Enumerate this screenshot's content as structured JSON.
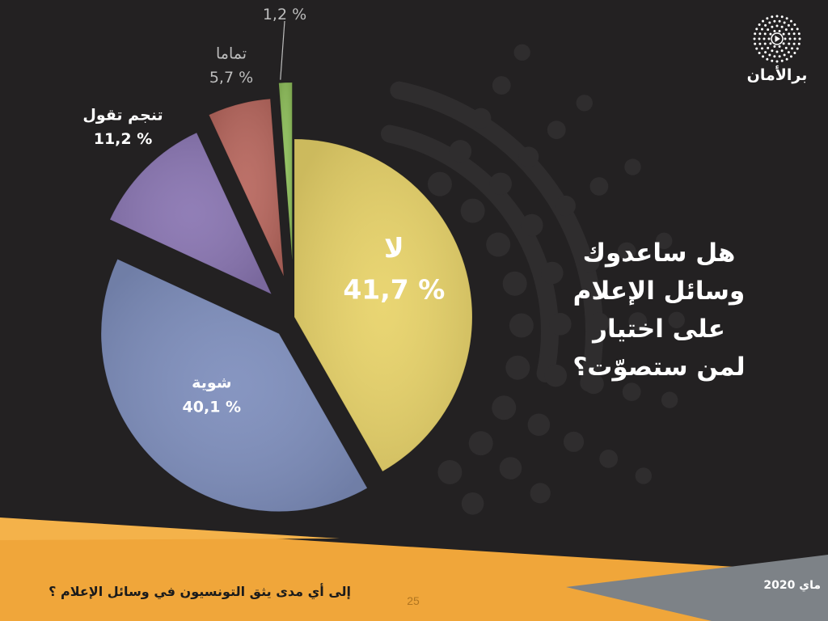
{
  "chart_data": {
    "type": "pie",
    "title": "",
    "slices": [
      {
        "name": "لا",
        "value": 41.7,
        "label": "41,7 %",
        "color": "#e8d36a"
      },
      {
        "name": "شوية",
        "value": 40.1,
        "label": "40,1 %",
        "color": "#7f8fbd"
      },
      {
        "name": "تنجم تقول",
        "value": 11.2,
        "label": "11,2 %",
        "color": "#8a76b2"
      },
      {
        "name": "تماما",
        "value": 5.7,
        "label": "5,7 %",
        "color": "#b8685f"
      },
      {
        "name": "",
        "value": 1.2,
        "label": "1,2 %",
        "color": "#8fbf5c"
      }
    ]
  },
  "question": {
    "lines": [
      "هل ساعدوك",
      "وسائل الإعلام",
      "على اختيار",
      "لمن ستصوّت؟"
    ]
  },
  "logo": {
    "text": "برالأمان",
    "icon": "play-dots-icon"
  },
  "footer": {
    "title": "إلى أي مدى يثق التونسيون في وسائل الإعلام ؟",
    "page_number": "25",
    "date": "ماي 2020"
  },
  "colors": {
    "background": "#232122",
    "footer_band": "#f0a63a",
    "footer_accent": "#7d8287",
    "decor": "#2f2d2e"
  }
}
